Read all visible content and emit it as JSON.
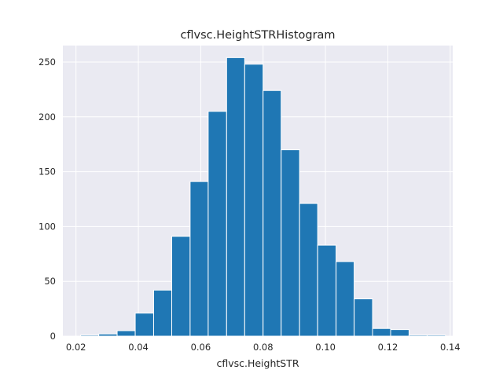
{
  "chart_data": {
    "type": "histogram",
    "title": "cflvsc.HeightSTRHistogram",
    "xlabel": "cflvsc.HeightSTR",
    "ylabel": "",
    "xlim": [
      0.0158,
      0.1408
    ],
    "ylim": [
      0,
      265
    ],
    "xticks": [
      0.02,
      0.04,
      0.06,
      0.08,
      0.1,
      0.12,
      0.14
    ],
    "xtick_labels": [
      "0.02",
      "0.04",
      "0.06",
      "0.08",
      "0.10",
      "0.12",
      "0.14"
    ],
    "yticks": [
      0,
      50,
      100,
      150,
      200,
      250
    ],
    "ytick_labels": [
      "0",
      "50",
      "100",
      "150",
      "200",
      "250"
    ],
    "grid": true,
    "legend": "none",
    "bin_edges": [
      0.0215,
      0.0273,
      0.0332,
      0.039,
      0.0449,
      0.0507,
      0.0566,
      0.0624,
      0.0683,
      0.0741,
      0.08,
      0.0858,
      0.0917,
      0.0975,
      0.1034,
      0.1092,
      0.1151,
      0.1209,
      0.1268,
      0.1326,
      0.1385
    ],
    "counts": [
      1,
      2,
      5,
      21,
      42,
      91,
      141,
      205,
      254,
      248,
      224,
      170,
      121,
      83,
      68,
      34,
      7,
      6,
      1,
      1
    ],
    "colors": {
      "bar": "#1f77b4",
      "bar_edge": "#ffffff",
      "plot_background": "#eaeaf2",
      "grid": "#ffffff"
    }
  }
}
